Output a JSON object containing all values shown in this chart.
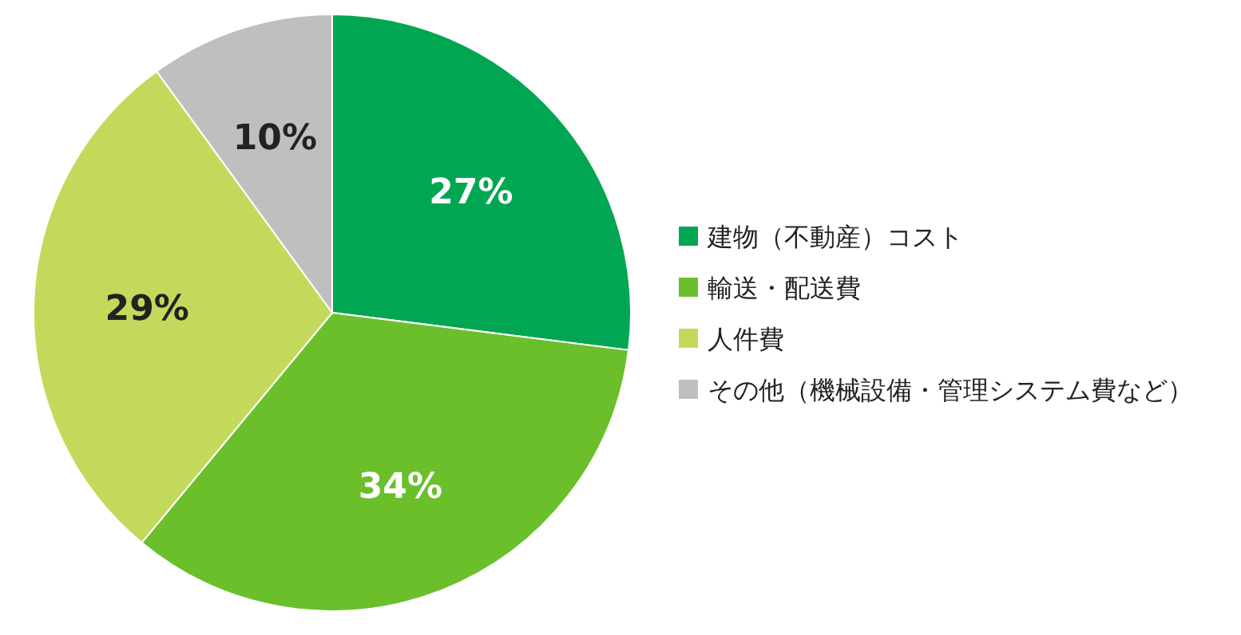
{
  "chart_data": {
    "type": "pie",
    "categories": [
      "建物（不動産）コスト",
      "輸送・配送費",
      "人件費",
      "その他（機械設備・管理システム費など）"
    ],
    "values": [
      27,
      34,
      29,
      10
    ],
    "colors": [
      "#00a651",
      "#6abf2a",
      "#c3d95b",
      "#bfbfbf"
    ],
    "value_labels": [
      "27%",
      "34%",
      "29%",
      "10%"
    ],
    "legend": "right"
  }
}
